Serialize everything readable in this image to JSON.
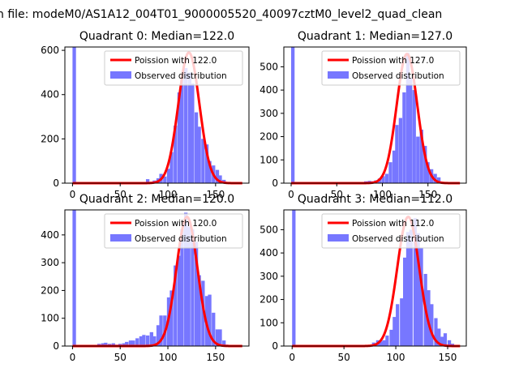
{
  "suptitle": "n file: modeM0/AS1A12_004T01_9000005520_40097cztM0_level2_quad_clean",
  "colors": {
    "hist": "#7777ff",
    "poisson": "#ff0000",
    "axis": "#000000"
  },
  "chart_data": [
    {
      "type": "bar",
      "title": "Quadrant 0: Median=122.0",
      "xlim": [
        -8,
        185
      ],
      "ylim": [
        0,
        615
      ],
      "xticks": [
        0,
        50,
        100,
        150
      ],
      "yticks": [
        0,
        200,
        400,
        600
      ],
      "legend_position": "top-right",
      "legend": [
        "Poission with 122.0",
        "Observed distribution"
      ],
      "bin_width": 3.65,
      "bins": [
        [
          0,
          615
        ],
        [
          66,
          5
        ],
        [
          73,
          3
        ],
        [
          77,
          18
        ],
        [
          80,
          5
        ],
        [
          84,
          12
        ],
        [
          88,
          22
        ],
        [
          91,
          42
        ],
        [
          95,
          30
        ],
        [
          99,
          65
        ],
        [
          102,
          140
        ],
        [
          106,
          260
        ],
        [
          110,
          410
        ],
        [
          113,
          470
        ],
        [
          117,
          520
        ],
        [
          121,
          500
        ],
        [
          124,
          450
        ],
        [
          128,
          320
        ],
        [
          131,
          255
        ],
        [
          135,
          200
        ],
        [
          139,
          175
        ],
        [
          142,
          100
        ],
        [
          146,
          80
        ],
        [
          150,
          60
        ],
        [
          153,
          35
        ],
        [
          157,
          15
        ],
        [
          161,
          5
        ],
        [
          164,
          2
        ]
      ],
      "poisson": {
        "median": 122.0,
        "peak": 590,
        "x_range": [
          0,
          178
        ]
      }
    },
    {
      "type": "bar",
      "title": "Quadrant 1: Median=127.0",
      "xlim": [
        -8,
        192
      ],
      "ylim": [
        0,
        585
      ],
      "xticks": [
        0,
        50,
        100,
        150
      ],
      "yticks": [
        0,
        100,
        200,
        300,
        400,
        500
      ],
      "legend_position": "top-right",
      "legend": [
        "Poission with 127.0",
        "Observed distribution"
      ],
      "bin_width": 3.8,
      "bins": [
        [
          0,
          585
        ],
        [
          72,
          5
        ],
        [
          76,
          3
        ],
        [
          80,
          8
        ],
        [
          84,
          10
        ],
        [
          88,
          8
        ],
        [
          91,
          12
        ],
        [
          95,
          20
        ],
        [
          99,
          30
        ],
        [
          103,
          40
        ],
        [
          107,
          90
        ],
        [
          111,
          140
        ],
        [
          114,
          250
        ],
        [
          118,
          280
        ],
        [
          122,
          390
        ],
        [
          126,
          560
        ],
        [
          129,
          450
        ],
        [
          133,
          400
        ],
        [
          137,
          200
        ],
        [
          141,
          230
        ],
        [
          145,
          160
        ],
        [
          148,
          90
        ],
        [
          152,
          60
        ],
        [
          156,
          40
        ],
        [
          160,
          25
        ],
        [
          164,
          5
        ]
      ],
      "poisson": {
        "median": 127.0,
        "peak": 555,
        "x_range": [
          0,
          185
        ]
      }
    },
    {
      "type": "bar",
      "title": "Quadrant 2: Median=120.0",
      "xlim": [
        -8,
        185
      ],
      "ylim": [
        0,
        490
      ],
      "xticks": [
        0,
        50,
        100,
        150
      ],
      "yticks": [
        0,
        100,
        200,
        300,
        400
      ],
      "legend_position": "top-right",
      "legend": [
        "Poission with 120.0",
        "Observed distribution"
      ],
      "bin_width": 3.65,
      "bins": [
        [
          0,
          490
        ],
        [
          26,
          8
        ],
        [
          30,
          10
        ],
        [
          33,
          12
        ],
        [
          37,
          8
        ],
        [
          41,
          10
        ],
        [
          44,
          5
        ],
        [
          48,
          8
        ],
        [
          52,
          10
        ],
        [
          55,
          15
        ],
        [
          59,
          20
        ],
        [
          62,
          20
        ],
        [
          66,
          28
        ],
        [
          70,
          35
        ],
        [
          73,
          40
        ],
        [
          77,
          38
        ],
        [
          81,
          50
        ],
        [
          84,
          35
        ],
        [
          88,
          75
        ],
        [
          91,
          110
        ],
        [
          95,
          110
        ],
        [
          99,
          175
        ],
        [
          102,
          200
        ],
        [
          106,
          290
        ],
        [
          110,
          325
        ],
        [
          113,
          420
        ],
        [
          117,
          480
        ],
        [
          120,
          430
        ],
        [
          124,
          420
        ],
        [
          128,
          375
        ],
        [
          131,
          255
        ],
        [
          135,
          235
        ],
        [
          139,
          180
        ],
        [
          142,
          185
        ],
        [
          146,
          120
        ],
        [
          150,
          60
        ],
        [
          153,
          60
        ],
        [
          157,
          20
        ],
        [
          160,
          5
        ]
      ],
      "poisson": {
        "median": 120.0,
        "peak": 465,
        "x_range": [
          0,
          178
        ]
      }
    },
    {
      "type": "bar",
      "title": "Quadrant 3: Median=112.0",
      "xlim": [
        -8,
        168
      ],
      "ylim": [
        0,
        585
      ],
      "xticks": [
        0,
        50,
        100,
        150
      ],
      "yticks": [
        0,
        100,
        200,
        300,
        400,
        500
      ],
      "legend_position": "top-right",
      "legend": [
        "Poission with 112.0",
        "Observed distribution"
      ],
      "bin_width": 3.3,
      "bins": [
        [
          0,
          585
        ],
        [
          74,
          5
        ],
        [
          77,
          15
        ],
        [
          81,
          25
        ],
        [
          84,
          20
        ],
        [
          87,
          25
        ],
        [
          90,
          45
        ],
        [
          94,
          70
        ],
        [
          97,
          125
        ],
        [
          100,
          180
        ],
        [
          104,
          205
        ],
        [
          107,
          380
        ],
        [
          110,
          490
        ],
        [
          113,
          500
        ],
        [
          117,
          550
        ],
        [
          120,
          485
        ],
        [
          123,
          420
        ],
        [
          127,
          310
        ],
        [
          130,
          240
        ],
        [
          133,
          180
        ],
        [
          137,
          120
        ],
        [
          140,
          75
        ],
        [
          143,
          40
        ],
        [
          146,
          55
        ],
        [
          150,
          25
        ],
        [
          153,
          10
        ],
        [
          156,
          5
        ]
      ],
      "poisson": {
        "median": 112.0,
        "peak": 555,
        "x_range": [
          0,
          162
        ]
      }
    }
  ]
}
